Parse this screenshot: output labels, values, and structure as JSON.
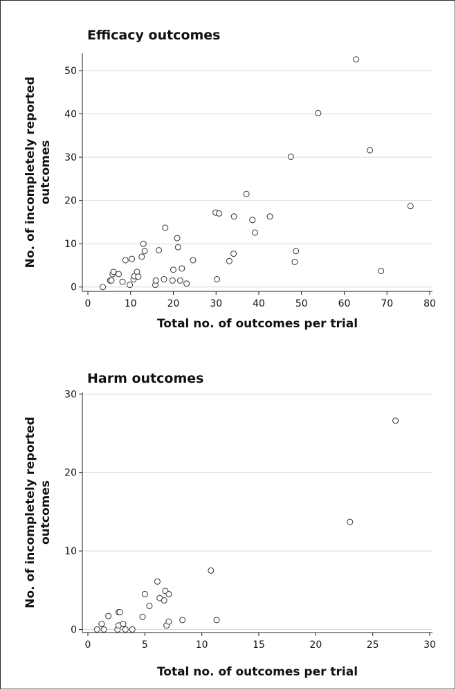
{
  "chart_data": [
    {
      "type": "scatter",
      "title": "Efficacy outcomes",
      "xlabel": "Total no. of outcomes per trial",
      "ylabel_lines": [
        "No. of incompletely reported",
        "outcomes"
      ],
      "xlim": [
        0,
        80
      ],
      "ylim": [
        -1,
        54
      ],
      "xticks": [
        0,
        10,
        20,
        30,
        40,
        50,
        60,
        70,
        80
      ],
      "yticks": [
        0,
        10,
        20,
        30,
        40,
        50
      ],
      "grid": "horizontal",
      "points": [
        [
          3.5,
          0
        ],
        [
          5.2,
          1.5
        ],
        [
          5.5,
          1.5
        ],
        [
          5.8,
          3
        ],
        [
          6.0,
          3.5
        ],
        [
          7.2,
          3
        ],
        [
          8.1,
          1.2
        ],
        [
          8.8,
          6.2
        ],
        [
          9.8,
          0.5
        ],
        [
          10.3,
          6.5
        ],
        [
          10.7,
          1.8
        ],
        [
          10.9,
          2.5
        ],
        [
          11.5,
          3.5
        ],
        [
          11.8,
          2.4
        ],
        [
          12.6,
          7.0
        ],
        [
          13.0,
          10.0
        ],
        [
          13.3,
          8.3
        ],
        [
          15.8,
          0.5
        ],
        [
          15.9,
          1.5
        ],
        [
          16.6,
          8.5
        ],
        [
          17.8,
          1.8
        ],
        [
          18.1,
          13.7
        ],
        [
          19.8,
          1.5
        ],
        [
          20.0,
          4.0
        ],
        [
          20.9,
          11.3
        ],
        [
          21.1,
          9.2
        ],
        [
          21.6,
          1.5
        ],
        [
          22.0,
          4.3
        ],
        [
          23.1,
          0.8
        ],
        [
          24.6,
          6.2
        ],
        [
          29.9,
          17.2
        ],
        [
          30.2,
          1.8
        ],
        [
          30.7,
          17.0
        ],
        [
          33.1,
          6.0
        ],
        [
          34.1,
          7.7
        ],
        [
          34.2,
          16.3
        ],
        [
          37.1,
          21.5
        ],
        [
          38.5,
          15.5
        ],
        [
          39.1,
          12.6
        ],
        [
          42.6,
          16.3
        ],
        [
          47.5,
          30.1
        ],
        [
          48.4,
          5.8
        ],
        [
          48.7,
          8.3
        ],
        [
          53.9,
          40.2
        ],
        [
          62.8,
          52.6
        ],
        [
          66.0,
          31.6
        ],
        [
          68.6,
          3.7
        ],
        [
          75.5,
          18.7
        ]
      ]
    },
    {
      "type": "scatter",
      "title": "Harm outcomes",
      "xlabel": "Total no. of outcomes per trial",
      "ylabel_lines": [
        "No. of incompletely reported",
        "outcomes"
      ],
      "xlim": [
        0,
        30
      ],
      "ylim": [
        -0.4,
        30.2
      ],
      "xticks": [
        0,
        5,
        10,
        15,
        20,
        25,
        30
      ],
      "yticks": [
        0,
        10,
        20,
        30
      ],
      "grid": "horizontal",
      "points": [
        [
          0.8,
          0
        ],
        [
          1.2,
          0.7
        ],
        [
          1.4,
          0
        ],
        [
          1.8,
          1.7
        ],
        [
          2.6,
          0
        ],
        [
          2.7,
          0.5
        ],
        [
          2.7,
          2.2
        ],
        [
          2.8,
          2.2
        ],
        [
          3.1,
          0.7
        ],
        [
          3.3,
          0
        ],
        [
          3.9,
          0
        ],
        [
          4.8,
          1.6
        ],
        [
          5.0,
          4.5
        ],
        [
          5.4,
          3.0
        ],
        [
          6.1,
          6.1
        ],
        [
          6.3,
          4.0
        ],
        [
          6.7,
          3.7
        ],
        [
          6.8,
          4.9
        ],
        [
          6.9,
          0.5
        ],
        [
          7.1,
          1.0
        ],
        [
          7.1,
          4.5
        ],
        [
          8.3,
          1.2
        ],
        [
          10.8,
          7.5
        ],
        [
          11.3,
          1.2
        ],
        [
          23.0,
          13.7
        ],
        [
          27.0,
          26.6
        ]
      ]
    }
  ]
}
